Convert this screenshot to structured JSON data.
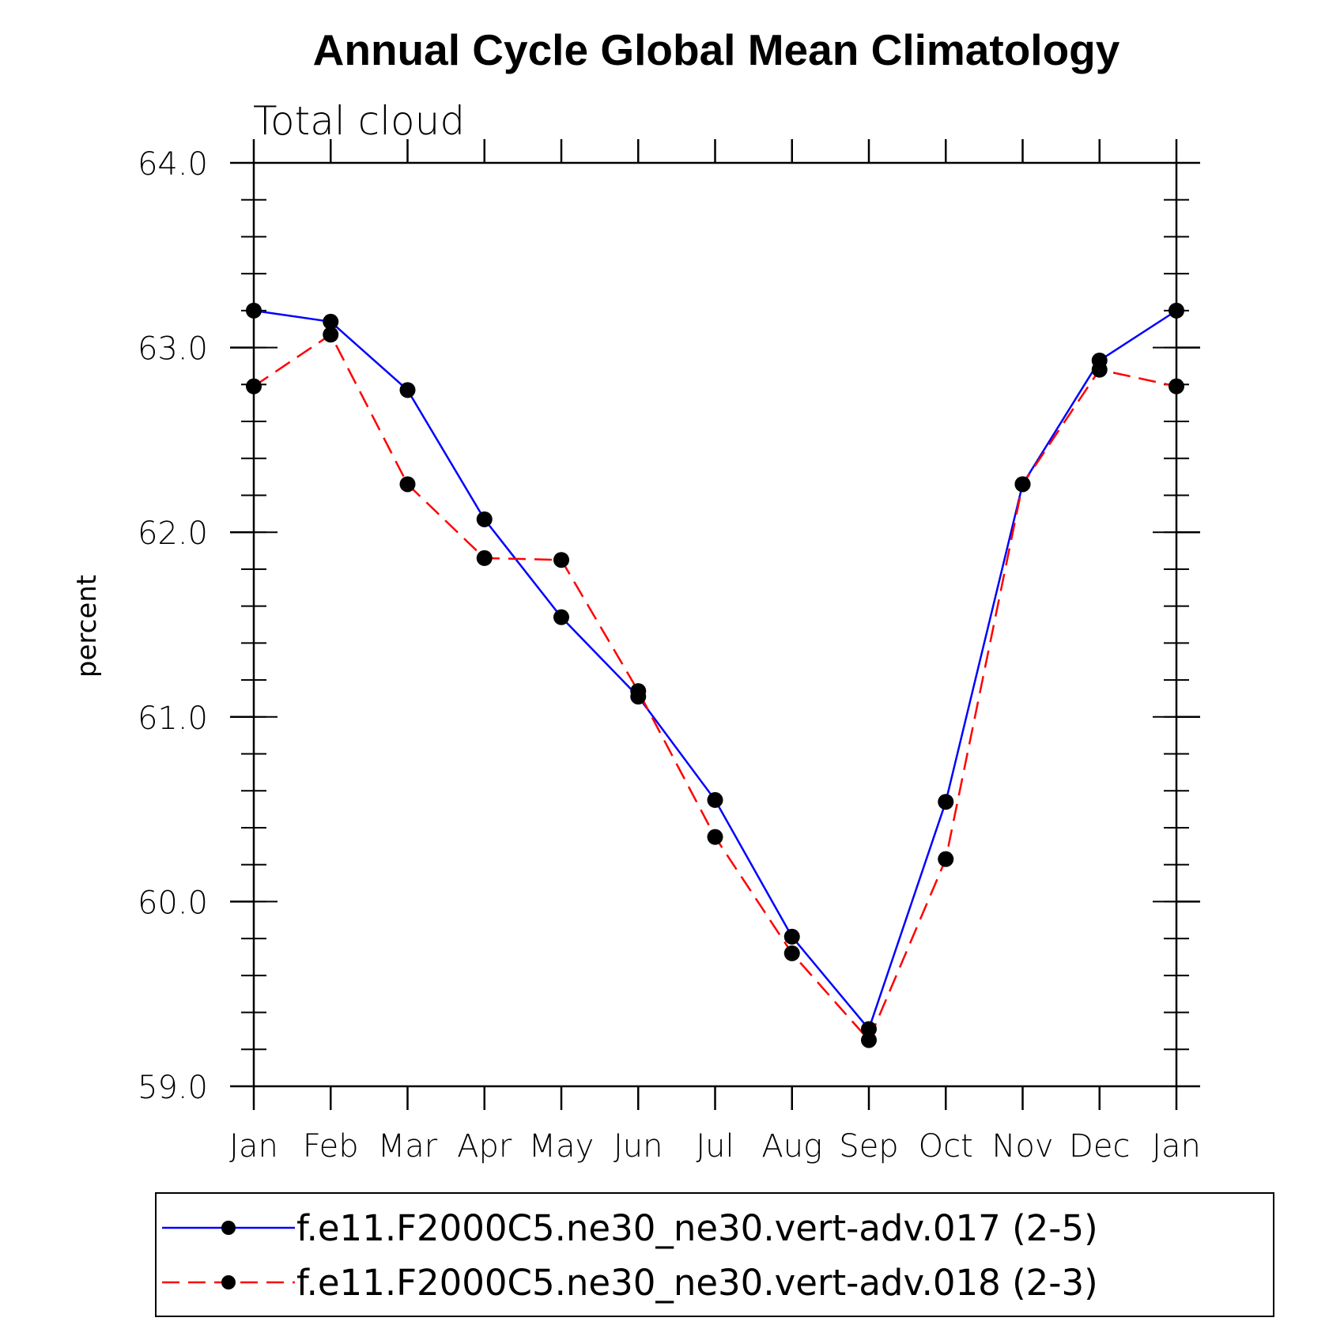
{
  "chart_data": {
    "type": "line",
    "title": "Annual Cycle Global Mean Climatology",
    "subtitle": "Total cloud",
    "xlabel": "",
    "ylabel": "percent",
    "categories": [
      "Jan",
      "Feb",
      "Mar",
      "Apr",
      "May",
      "Jun",
      "Jul",
      "Aug",
      "Sep",
      "Oct",
      "Nov",
      "Dec",
      "Jan"
    ],
    "ylim": [
      59.0,
      64.0
    ],
    "yticks": [
      "59.0",
      "60.0",
      "61.0",
      "62.0",
      "63.0",
      "64.0"
    ],
    "y_minor_step": 0.2,
    "legend_position": "bottom",
    "grid": false,
    "series": [
      {
        "name": "f.e11.F2000C5.ne30_ne30.vert-adv.017 (2-5)",
        "color": "#0000ff",
        "style": "solid",
        "marker": "filled-circle",
        "values": [
          63.2,
          63.14,
          62.77,
          62.07,
          61.54,
          61.11,
          60.55,
          59.81,
          59.31,
          60.54,
          62.26,
          62.93,
          63.2
        ]
      },
      {
        "name": "f.e11.F2000C5.ne30_ne30.vert-adv.018 (2-3)",
        "color": "#ff0000",
        "style": "dashed",
        "marker": "filled-circle",
        "values": [
          62.79,
          63.07,
          62.26,
          61.86,
          61.85,
          61.14,
          60.35,
          59.72,
          59.25,
          60.23,
          62.26,
          62.88,
          62.79
        ]
      }
    ]
  }
}
